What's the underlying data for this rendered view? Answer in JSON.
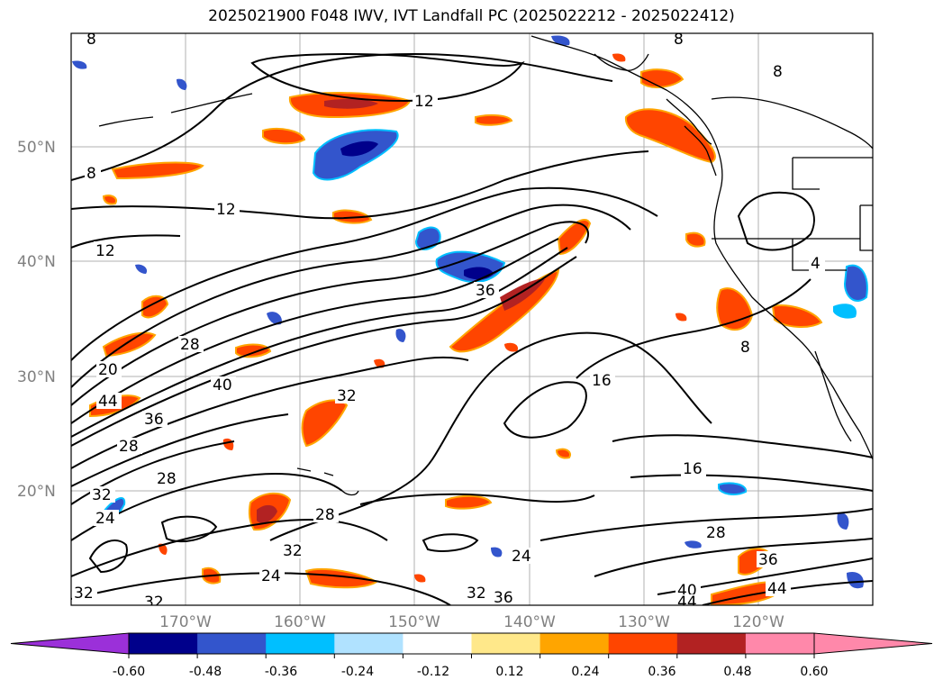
{
  "title": "2025021900 F048 IWV, IVT Landfall PC (2025022212 - 2025022412)",
  "map": {
    "lat_labels": [
      "50°N",
      "40°N",
      "30°N",
      "20°N"
    ],
    "lon_labels": [
      "170°W",
      "160°W",
      "150°W",
      "140°W",
      "130°W",
      "120°W"
    ],
    "contour_labels": [
      "8",
      "12",
      "8",
      "12",
      "12",
      "36",
      "28",
      "20",
      "44",
      "40",
      "32",
      "36",
      "28",
      "28",
      "32",
      "24",
      "28",
      "16",
      "16",
      "28",
      "24",
      "32",
      "36",
      "32",
      "24",
      "32",
      "32",
      "40",
      "44",
      "36",
      "44",
      "8",
      "8",
      "8",
      "4"
    ]
  },
  "colorbar": {
    "tick_labels": [
      "-0.60",
      "-0.48",
      "-0.36",
      "-0.24",
      "-0.12",
      "0.12",
      "0.24",
      "0.36",
      "0.48",
      "0.60"
    ],
    "colors": {
      "under": "#9b30d9",
      "bins": [
        "#00008b",
        "#3355cc",
        "#00bfff",
        "#b0e2ff",
        "#ffffff",
        "#ffe88a",
        "#ffa500",
        "#ff4500",
        "#b22222",
        "#ff88aa"
      ],
      "over": "#ff88aa"
    }
  }
}
